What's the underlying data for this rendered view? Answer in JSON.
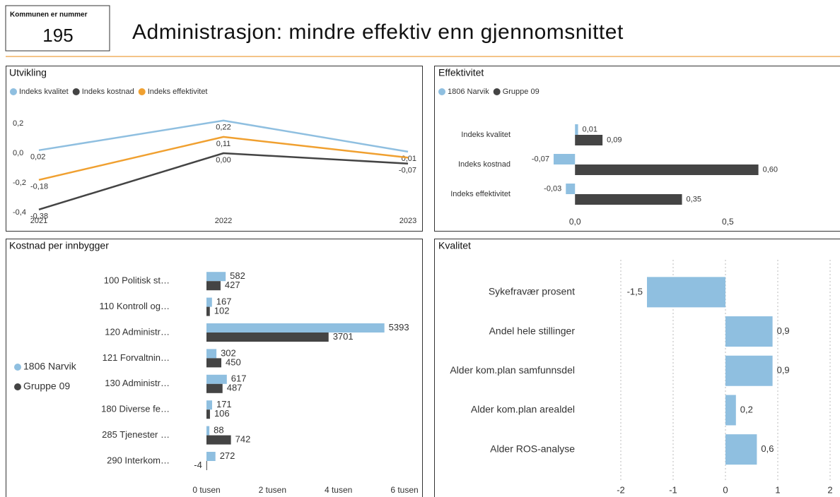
{
  "header": {
    "label": "Kommunen er nummer",
    "number": "195",
    "title": "Administrasjon: mindre effektiv enn gjennomsnittet"
  },
  "chart_data": [
    {
      "type": "line",
      "title": "Utvikling",
      "categories": [
        "2021",
        "2022",
        "2023"
      ],
      "series": [
        {
          "name": "Indeks kvalitet",
          "color": "#8fbfe0",
          "values": [
            0.02,
            0.22,
            0.01
          ],
          "value_labels": [
            "0,02",
            "0,22",
            "0,01"
          ]
        },
        {
          "name": "Indeks kostnad",
          "color": "#444444",
          "values": [
            -0.38,
            0.0,
            -0.07
          ],
          "value_labels": [
            "-0,38",
            "0,00",
            "-0,07"
          ]
        },
        {
          "name": "Indeks effektivitet",
          "color": "#f0a030",
          "values": [
            -0.18,
            0.11,
            -0.03
          ],
          "value_labels": [
            "-0,18",
            "0,11",
            null
          ]
        }
      ],
      "ylim": [
        -0.4,
        0.3
      ],
      "yticks": [
        {
          "value": -0.4,
          "label": "-0,4"
        },
        {
          "value": -0.2,
          "label": "-0,2"
        },
        {
          "value": 0,
          "label": "0,0"
        },
        {
          "value": 0.2,
          "label": "0,2"
        }
      ],
      "grid": false
    },
    {
      "type": "hbar",
      "title": "Effektivitet",
      "categories": [
        "Indeks kvalitet",
        "Indeks kostnad",
        "Indeks effektivitet"
      ],
      "series": [
        {
          "name": "1806 Narvik",
          "color": "#8fbfe0",
          "values": [
            0.01,
            -0.07,
            -0.03
          ],
          "value_labels": [
            "0,01",
            "-0,07",
            "-0,03"
          ]
        },
        {
          "name": "Gruppe 09",
          "color": "#444444",
          "values": [
            0.09,
            0.6,
            0.35
          ],
          "value_labels": [
            "0,09",
            "0,60",
            "0,35"
          ]
        }
      ],
      "xlim": [
        -0.1,
        0.86
      ],
      "xticks": [
        {
          "value": 0,
          "label": "0,0"
        },
        {
          "value": 0.5,
          "label": "0,5"
        }
      ],
      "grid": false
    },
    {
      "type": "hbar",
      "title": "Kostnad per innbygger",
      "categories": [
        "100 Politisk st…",
        "110 Kontroll og…",
        "120 Administr…",
        "121 Forvaltnin…",
        "130 Administr…",
        "180 Diverse fe…",
        "285 Tjenester …",
        "290 Interkom…"
      ],
      "series": [
        {
          "name": "1806 Narvik",
          "color": "#8fbfe0",
          "values": [
            582,
            167,
            5393,
            302,
            617,
            171,
            88,
            272
          ]
        },
        {
          "name": "Gruppe 09",
          "color": "#444444",
          "values": [
            427,
            102,
            3701,
            450,
            487,
            106,
            742,
            -4
          ]
        }
      ],
      "xlim": [
        0,
        6000
      ],
      "xticks": [
        {
          "value": 0,
          "label": "0 tusen"
        },
        {
          "value": 2000,
          "label": "2 tusen"
        },
        {
          "value": 4000,
          "label": "4 tusen"
        },
        {
          "value": 6000,
          "label": "6 tusen"
        }
      ],
      "grid": false
    },
    {
      "type": "hbar",
      "title": "Kvalitet",
      "categories": [
        "Sykefravær prosent",
        "Andel hele stillinger",
        "Alder kom.plan samfunnsdel",
        "Alder kom.plan arealdel",
        "Alder ROS-analyse"
      ],
      "series": [
        {
          "color": "#8fbfe0",
          "values": [
            -1.5,
            0.9,
            0.9,
            0.2,
            0.6
          ],
          "value_labels": [
            "-1,5",
            "0,9",
            "0,9",
            "0,2",
            "0,6"
          ]
        }
      ],
      "xlim": [
        -2,
        2
      ],
      "xticks": [
        -2,
        -1,
        0,
        1,
        2
      ],
      "grid": true
    }
  ]
}
